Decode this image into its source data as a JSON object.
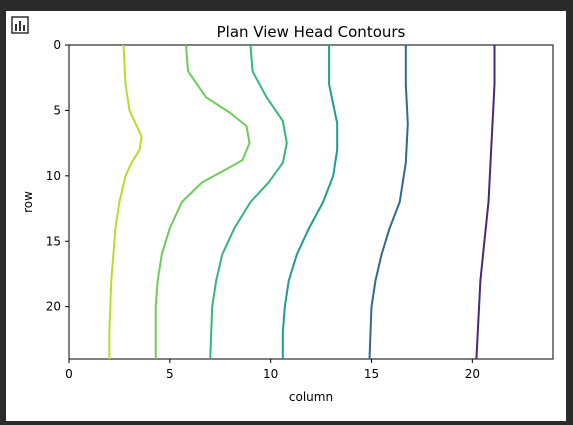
{
  "toolbar": {
    "icon": "bar-chart-icon"
  },
  "chart_data": {
    "type": "contour",
    "title": "Plan View Head Contours",
    "xlabel": "column",
    "ylabel": "row",
    "xlim": [
      0,
      24
    ],
    "ylim": [
      24,
      0
    ],
    "y_inverted": true,
    "xticks": [
      0,
      5,
      10,
      15,
      20
    ],
    "yticks": [
      0,
      5,
      10,
      15,
      20
    ],
    "grid": false,
    "series": [
      {
        "color": "#b5de2b",
        "points": [
          [
            2.7,
            0
          ],
          [
            2.8,
            3
          ],
          [
            3.0,
            5
          ],
          [
            3.6,
            7
          ],
          [
            3.5,
            8
          ],
          [
            3.1,
            9
          ],
          [
            2.8,
            10
          ],
          [
            2.5,
            12
          ],
          [
            2.3,
            14
          ],
          [
            2.2,
            16
          ],
          [
            2.1,
            18
          ],
          [
            2.05,
            20
          ],
          [
            2.0,
            22
          ],
          [
            2.0,
            24
          ]
        ]
      },
      {
        "color": "#6ccd5a",
        "points": [
          [
            5.8,
            0
          ],
          [
            5.9,
            2
          ],
          [
            6.8,
            4
          ],
          [
            8.0,
            5.2
          ],
          [
            8.8,
            6.2
          ],
          [
            8.95,
            7.5
          ],
          [
            8.6,
            8.8
          ],
          [
            7.8,
            9.5
          ],
          [
            6.6,
            10.5
          ],
          [
            5.6,
            12
          ],
          [
            5.0,
            14
          ],
          [
            4.6,
            16
          ],
          [
            4.4,
            18
          ],
          [
            4.3,
            20
          ],
          [
            4.3,
            22
          ],
          [
            4.3,
            24
          ]
        ]
      },
      {
        "color": "#35b779",
        "points": [
          [
            9.0,
            0
          ],
          [
            9.1,
            2
          ],
          [
            9.8,
            4
          ],
          [
            10.6,
            5.8
          ],
          [
            10.8,
            7.5
          ],
          [
            10.6,
            9
          ],
          [
            9.9,
            10.5
          ],
          [
            9.0,
            12
          ],
          [
            8.2,
            14
          ],
          [
            7.6,
            16
          ],
          [
            7.3,
            18
          ],
          [
            7.1,
            20
          ],
          [
            7.05,
            22
          ],
          [
            7.0,
            24
          ]
        ]
      },
      {
        "color": "#1f9e89",
        "points": [
          [
            12.9,
            0
          ],
          [
            12.9,
            3
          ],
          [
            13.3,
            6
          ],
          [
            13.3,
            8
          ],
          [
            13.1,
            10
          ],
          [
            12.6,
            12
          ],
          [
            11.9,
            14
          ],
          [
            11.3,
            16
          ],
          [
            10.9,
            18
          ],
          [
            10.7,
            20
          ],
          [
            10.6,
            22
          ],
          [
            10.6,
            24
          ]
        ]
      },
      {
        "color": "#31688e",
        "points": [
          [
            16.7,
            0
          ],
          [
            16.7,
            3
          ],
          [
            16.8,
            6
          ],
          [
            16.7,
            9
          ],
          [
            16.4,
            12
          ],
          [
            15.9,
            14
          ],
          [
            15.5,
            16
          ],
          [
            15.2,
            18
          ],
          [
            15.0,
            20
          ],
          [
            14.95,
            22
          ],
          [
            14.9,
            24
          ]
        ]
      },
      {
        "color": "#482878",
        "points": [
          [
            21.1,
            0
          ],
          [
            21.1,
            3
          ],
          [
            21.0,
            6
          ],
          [
            20.9,
            9
          ],
          [
            20.8,
            12
          ],
          [
            20.6,
            15
          ],
          [
            20.4,
            18
          ],
          [
            20.3,
            21
          ],
          [
            20.2,
            24
          ]
        ]
      }
    ]
  }
}
